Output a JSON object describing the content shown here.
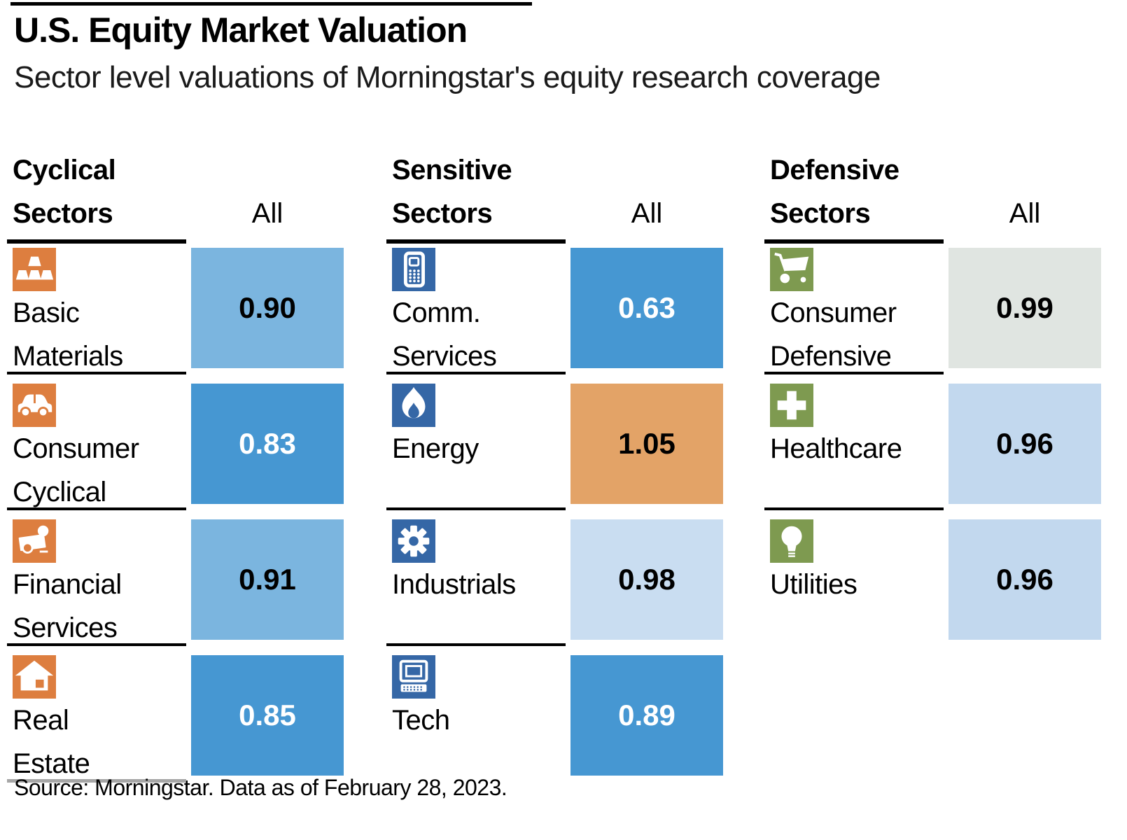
{
  "page": {
    "title": "U.S. Equity Market Valuation",
    "subtitle": "Sector level valuations of Morningstar's equity research coverage",
    "source_note": "Source: Morningstar. Data as of February 28, 2023."
  },
  "colors": {
    "cyclical_accent": "#DD7E3F",
    "sensitive_accent": "#3567A6",
    "defensive_accent": "#7E9A50",
    "box_blue_strong": "#4697D2",
    "box_blue_mid": "#7BB5DF",
    "box_blue_light": "#C9DDF1",
    "box_blue_pale": "#C2D8EE",
    "box_orange": "#E3A367",
    "box_gray": "#E0E5E1",
    "rule_black": "#000000",
    "rule_gray": "#A6A6A6"
  },
  "chart_data": {
    "type": "heatmap",
    "title": "U.S. Equity Market Valuation",
    "subtitle": "Sector level valuations of Morningstar's equity research coverage",
    "value_column_label": "All",
    "source": "Source: Morningstar. Data as of February 28, 2023.",
    "groups": [
      {
        "label": "Cyclical Sectors",
        "label_lines": [
          "Cyclical",
          "Sectors"
        ],
        "all_label": "All",
        "accent_color": "#DD7E3F",
        "sectors": [
          {
            "name": "Basic Materials",
            "name_lines": [
              "Basic",
              "Materials"
            ],
            "icon": "gold-bars",
            "value": 0.9,
            "value_text": "0.90",
            "box_color": "#7BB5DF",
            "text_color": "#000000",
            "rule_after": "black"
          },
          {
            "name": "Consumer Cyclical",
            "name_lines": [
              "Consumer",
              "Cyclical"
            ],
            "icon": "car",
            "value": 0.83,
            "value_text": "0.83",
            "box_color": "#4697D2",
            "text_color": "#FFFFFF",
            "rule_after": "black"
          },
          {
            "name": "Financial Services",
            "name_lines": [
              "Financial",
              "Services"
            ],
            "icon": "money",
            "value": 0.91,
            "value_text": "0.91",
            "box_color": "#7BB5DF",
            "text_color": "#000000",
            "rule_after": "black"
          },
          {
            "name": "Real Estate",
            "name_lines": [
              "Real",
              "Estate"
            ],
            "icon": "house",
            "value": 0.85,
            "value_text": "0.85",
            "box_color": "#4697D2",
            "text_color": "#FFFFFF",
            "rule_after": "gray"
          }
        ]
      },
      {
        "label": "Sensitive Sectors",
        "label_lines": [
          "Sensitive",
          "Sectors"
        ],
        "all_label": "All",
        "accent_color": "#3567A6",
        "sectors": [
          {
            "name": "Comm. Services",
            "name_lines": [
              "Comm.",
              "Services"
            ],
            "icon": "mobile-phone",
            "value": 0.63,
            "value_text": "0.63",
            "box_color": "#4697D2",
            "text_color": "#FFFFFF",
            "rule_after": "black"
          },
          {
            "name": "Energy",
            "name_lines": [
              "Energy"
            ],
            "icon": "flame",
            "value": 1.05,
            "value_text": "1.05",
            "box_color": "#E3A367",
            "text_color": "#000000",
            "rule_after": "black"
          },
          {
            "name": "Industrials",
            "name_lines": [
              "Industrials"
            ],
            "icon": "gear",
            "value": 0.98,
            "value_text": "0.98",
            "box_color": "#C9DDF1",
            "text_color": "#000000",
            "rule_after": "black"
          },
          {
            "name": "Tech",
            "name_lines": [
              "Tech"
            ],
            "icon": "computer",
            "value": 0.89,
            "value_text": "0.89",
            "box_color": "#4697D2",
            "text_color": "#FFFFFF",
            "rule_after": "none"
          }
        ]
      },
      {
        "label": "Defensive Sectors",
        "label_lines": [
          "Defensive",
          "Sectors"
        ],
        "all_label": "All",
        "accent_color": "#7E9A50",
        "sectors": [
          {
            "name": "Consumer Defensive",
            "name_lines": [
              "Consumer",
              "Defensive"
            ],
            "icon": "shopping-cart",
            "value": 0.99,
            "value_text": "0.99",
            "box_color": "#E0E5E1",
            "text_color": "#000000",
            "rule_after": "black"
          },
          {
            "name": "Healthcare",
            "name_lines": [
              "Healthcare"
            ],
            "icon": "medical-cross",
            "value": 0.96,
            "value_text": "0.96",
            "box_color": "#C2D8EE",
            "text_color": "#000000",
            "rule_after": "black"
          },
          {
            "name": "Utilities",
            "name_lines": [
              "Utilities"
            ],
            "icon": "lightbulb",
            "value": 0.96,
            "value_text": "0.96",
            "box_color": "#C2D8EE",
            "text_color": "#000000",
            "rule_after": "none"
          }
        ]
      }
    ]
  }
}
